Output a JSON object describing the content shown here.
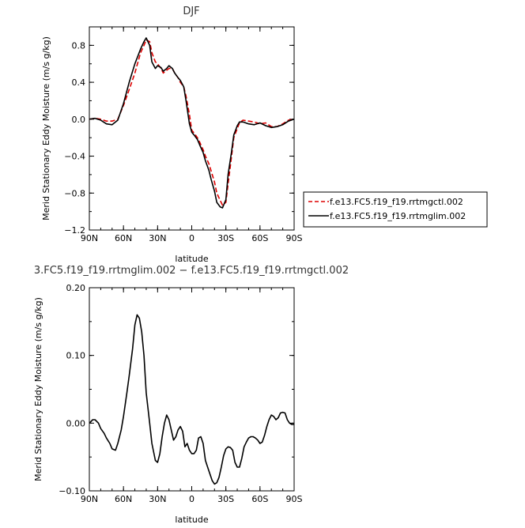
{
  "chart_data": [
    {
      "type": "line",
      "title": "DJF",
      "xlabel": "latitude",
      "ylabel": "Merid Stationary Eddy Moisture (m/s g/kg)",
      "xlim": [
        90,
        -90
      ],
      "ylim": [
        -1.2,
        1.0
      ],
      "x_ticks": [
        90,
        60,
        30,
        0,
        -30,
        -60,
        -90
      ],
      "x_tick_labels": [
        "90N",
        "60N",
        "30N",
        "0",
        "30S",
        "60S",
        "90S"
      ],
      "y_ticks": [
        -1.2,
        -0.8,
        -0.4,
        0.0,
        0.4,
        0.8
      ],
      "y_tick_labels": [
        "−1.2",
        "−0.8",
        "−0.4",
        "0.0",
        "0.4",
        "0.8"
      ],
      "legend": "outside-right",
      "grid": false,
      "series": [
        {
          "name": "f.e13.FC5.f19_f19.rrtmgctl.002",
          "color": "#dd0000",
          "dash": "dashed",
          "x": [
            90,
            85,
            80,
            75,
            70,
            65,
            60,
            55,
            50,
            45,
            42,
            40,
            37,
            35,
            32,
            30,
            27,
            25,
            22,
            20,
            17,
            15,
            12,
            10,
            7,
            5,
            2,
            0,
            -2,
            -5,
            -7,
            -10,
            -12,
            -15,
            -17,
            -20,
            -22,
            -25,
            -27,
            -30,
            -32,
            -35,
            -37,
            -40,
            -42,
            -45,
            -50,
            -55,
            -60,
            -65,
            -70,
            -75,
            -80,
            -85,
            -90
          ],
          "y": [
            0.0,
            0.01,
            0.0,
            -0.02,
            -0.02,
            0.0,
            0.15,
            0.32,
            0.5,
            0.72,
            0.8,
            0.86,
            0.84,
            0.72,
            0.62,
            0.6,
            0.55,
            0.5,
            0.53,
            0.55,
            0.55,
            0.5,
            0.45,
            0.4,
            0.35,
            0.25,
            0.05,
            -0.12,
            -0.15,
            -0.2,
            -0.25,
            -0.33,
            -0.4,
            -0.48,
            -0.56,
            -0.68,
            -0.8,
            -0.88,
            -0.93,
            -0.9,
            -0.7,
            -0.4,
            -0.2,
            -0.1,
            -0.04,
            -0.01,
            -0.02,
            -0.03,
            -0.05,
            -0.04,
            -0.08,
            -0.08,
            -0.05,
            -0.01,
            0.0
          ]
        },
        {
          "name": "f.e13.FC5.f19_f19.rrtmglim.002",
          "color": "#000000",
          "dash": "solid",
          "x": [
            90,
            85,
            80,
            75,
            70,
            65,
            60,
            55,
            50,
            45,
            42,
            40,
            37,
            35,
            32,
            30,
            27,
            25,
            22,
            20,
            17,
            15,
            12,
            10,
            7,
            5,
            2,
            0,
            -2,
            -5,
            -7,
            -10,
            -12,
            -15,
            -17,
            -20,
            -22,
            -25,
            -27,
            -30,
            -32,
            -35,
            -37,
            -40,
            -42,
            -45,
            -50,
            -55,
            -60,
            -65,
            -70,
            -75,
            -80,
            -85,
            -90
          ],
          "y": [
            0.0,
            0.01,
            -0.01,
            -0.05,
            -0.06,
            -0.01,
            0.17,
            0.4,
            0.6,
            0.76,
            0.84,
            0.88,
            0.8,
            0.62,
            0.55,
            0.58,
            0.56,
            0.52,
            0.55,
            0.58,
            0.55,
            0.5,
            0.45,
            0.42,
            0.35,
            0.2,
            -0.05,
            -0.14,
            -0.17,
            -0.22,
            -0.28,
            -0.36,
            -0.45,
            -0.55,
            -0.65,
            -0.78,
            -0.9,
            -0.95,
            -0.96,
            -0.87,
            -0.6,
            -0.35,
            -0.17,
            -0.07,
            -0.03,
            -0.03,
            -0.05,
            -0.06,
            -0.04,
            -0.07,
            -0.09,
            -0.08,
            -0.06,
            -0.02,
            0.0
          ]
        }
      ]
    },
    {
      "type": "line",
      "title": "3.FC5.f19_f19.rrtmglim.002 − f.e13.FC5.f19_f19.rrtmgctl.002",
      "xlabel": "latitude",
      "ylabel": "Merid Stationary Eddy Moisture (m/s g/kg)",
      "xlim": [
        90,
        -90
      ],
      "ylim": [
        -0.1,
        0.2
      ],
      "x_ticks": [
        90,
        60,
        30,
        0,
        -30,
        -60,
        -90
      ],
      "x_tick_labels": [
        "90N",
        "60N",
        "30N",
        "0",
        "30S",
        "60S",
        "90S"
      ],
      "y_ticks": [
        -0.1,
        0.0,
        0.1,
        0.2
      ],
      "y_tick_labels": [
        "−0.10",
        "0.00",
        "0.10",
        "0.20"
      ],
      "grid": false,
      "series": [
        {
          "color": "#000000",
          "dash": "solid",
          "x": [
            90,
            87,
            85,
            82,
            80,
            77,
            75,
            72,
            70,
            67,
            65,
            62,
            60,
            57,
            55,
            52,
            50,
            48,
            46,
            44,
            42,
            40,
            37,
            35,
            32,
            30,
            28,
            26,
            24,
            22,
            20,
            18,
            16,
            14,
            12,
            10,
            8,
            6,
            4,
            2,
            0,
            -2,
            -4,
            -6,
            -8,
            -10,
            -12,
            -14,
            -16,
            -18,
            -20,
            -22,
            -24,
            -26,
            -28,
            -30,
            -32,
            -34,
            -36,
            -38,
            -40,
            -42,
            -44,
            -46,
            -48,
            -50,
            -52,
            -54,
            -56,
            -58,
            -60,
            -62,
            -64,
            -66,
            -68,
            -70,
            -72,
            -74,
            -76,
            -78,
            -80,
            -82,
            -84,
            -86,
            -88,
            -90
          ],
          "y": [
            0.0,
            0.005,
            0.005,
            0.0,
            -0.008,
            -0.015,
            -0.022,
            -0.03,
            -0.038,
            -0.04,
            -0.03,
            -0.01,
            0.01,
            0.045,
            0.07,
            0.11,
            0.145,
            0.16,
            0.155,
            0.135,
            0.1,
            0.045,
            0.0,
            -0.03,
            -0.055,
            -0.058,
            -0.045,
            -0.02,
            0.0,
            0.012,
            0.005,
            -0.01,
            -0.025,
            -0.02,
            -0.01,
            -0.005,
            -0.012,
            -0.035,
            -0.03,
            -0.04,
            -0.045,
            -0.045,
            -0.04,
            -0.022,
            -0.02,
            -0.03,
            -0.055,
            -0.065,
            -0.075,
            -0.085,
            -0.09,
            -0.088,
            -0.08,
            -0.065,
            -0.048,
            -0.038,
            -0.035,
            -0.036,
            -0.04,
            -0.058,
            -0.065,
            -0.065,
            -0.052,
            -0.035,
            -0.028,
            -0.022,
            -0.02,
            -0.02,
            -0.022,
            -0.025,
            -0.03,
            -0.028,
            -0.018,
            -0.005,
            0.005,
            0.012,
            0.01,
            0.005,
            0.008,
            0.015,
            0.016,
            0.015,
            0.005,
            0.0,
            -0.002,
            -0.002
          ]
        }
      ]
    }
  ]
}
